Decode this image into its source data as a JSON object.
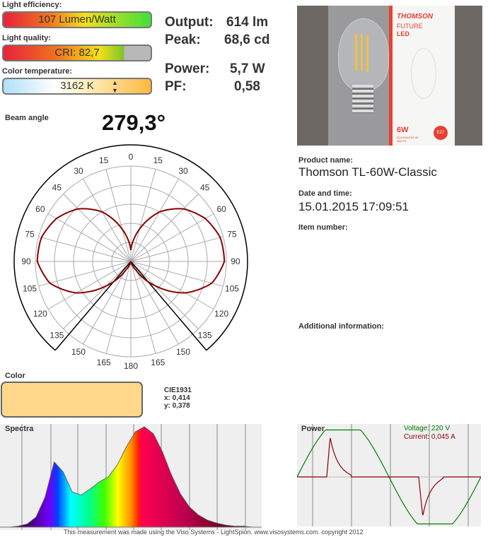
{
  "efficiency": {
    "label": "Light efficiency:",
    "value": "107 Lumen/Watt"
  },
  "quality": {
    "label": "Light quality:",
    "value": "CRI:  82,7",
    "fill": 0.827
  },
  "colortemp": {
    "label": "Color temperature:",
    "value": "3162 K"
  },
  "stats": {
    "output_label": "Output:",
    "output_value": "614 lm",
    "peak_label": "Peak:",
    "peak_value": "68,6 cd",
    "power_label": "Power:",
    "power_value": "5,7 W",
    "pf_label": "PF:",
    "pf_value": "0,58"
  },
  "beam": {
    "label": "Beam angle",
    "value": "279,3°"
  },
  "product": {
    "name_label": "Product name:",
    "name": "Thomson TL-60W-Classic",
    "date_label": "Date and time:",
    "date": "15.01.2015  17:09:51",
    "item_label": "Item number:",
    "additional_label": "Additional information:",
    "photo_text": {
      "brand": "THOMSON",
      "line1": "FUTURE",
      "line2": "LED",
      "watt": "6W",
      "socket": "E27",
      "equiv": "EQUIVALENT 60 WATTS"
    }
  },
  "color": {
    "label": "Color",
    "swatch": "#ffd88c",
    "cie_label": "CIE1931",
    "x": "x: 0,414",
    "y": "y: 0,378"
  },
  "spectra": {
    "label": "Spectra"
  },
  "power_chart": {
    "label": "Power",
    "voltage": "Voltage: 220 V",
    "current": "Current: 0,045 A",
    "voltage_color": "#008000",
    "current_color": "#8b0000"
  },
  "footer": "This measurement was made using the Viso Systems - LightSpion. www.visosystems.com. copyright 2012",
  "chart_data": [
    {
      "type": "polar",
      "angle_labels": [
        "0",
        "15",
        "30",
        "45",
        "60",
        "75",
        "90",
        "105",
        "120",
        "135",
        "150",
        "165",
        "180"
      ],
      "angles": [
        0,
        15,
        30,
        45,
        60,
        75,
        90,
        105,
        120,
        135,
        150,
        165,
        180
      ],
      "relative_intensity": [
        0.12,
        0.35,
        0.6,
        0.78,
        0.9,
        0.97,
        0.98,
        0.88,
        0.66,
        0.36,
        0.1,
        0.0,
        0.0
      ],
      "beam_angle": 279.3,
      "curve_color": "#8b0000"
    },
    {
      "type": "area",
      "title": "Spectra",
      "relative_intensity": [
        0.0,
        0.0,
        0.01,
        0.03,
        0.1,
        0.3,
        0.65,
        0.55,
        0.35,
        0.32,
        0.38,
        0.45,
        0.5,
        0.62,
        0.8,
        0.95,
        1.0,
        0.93,
        0.75,
        0.52,
        0.33,
        0.2,
        0.12,
        0.07,
        0.04,
        0.02,
        0.01,
        0.01,
        0.0,
        0.0
      ]
    },
    {
      "type": "line",
      "title": "Power",
      "series": [
        {
          "name": "Voltage"
        },
        {
          "name": "Current"
        }
      ]
    }
  ]
}
